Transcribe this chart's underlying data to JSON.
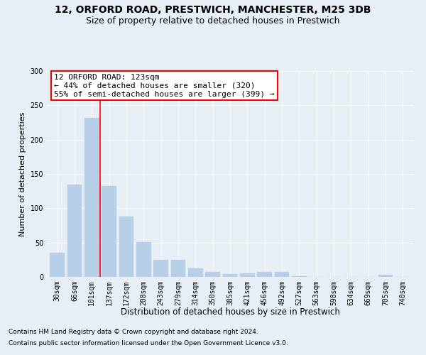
{
  "title1": "12, ORFORD ROAD, PRESTWICH, MANCHESTER, M25 3DB",
  "title2": "Size of property relative to detached houses in Prestwich",
  "xlabel": "Distribution of detached houses by size in Prestwich",
  "ylabel": "Number of detached properties",
  "bar_labels": [
    "30sqm",
    "66sqm",
    "101sqm",
    "137sqm",
    "172sqm",
    "208sqm",
    "243sqm",
    "279sqm",
    "314sqm",
    "350sqm",
    "385sqm",
    "421sqm",
    "456sqm",
    "492sqm",
    "527sqm",
    "563sqm",
    "598sqm",
    "634sqm",
    "669sqm",
    "705sqm",
    "740sqm"
  ],
  "bar_heights": [
    35,
    135,
    232,
    132,
    88,
    51,
    25,
    25,
    12,
    7,
    4,
    5,
    7,
    7,
    1,
    0,
    0,
    0,
    0,
    3,
    0
  ],
  "bar_color": "#b8cfe8",
  "bar_edgecolor": "#b8cfe8",
  "background_color": "#e8eef5",
  "vline_x": 2.5,
  "vline_color": "red",
  "annotation_title": "12 ORFORD ROAD: 123sqm",
  "annotation_line1": "← 44% of detached houses are smaller (320)",
  "annotation_line2": "55% of semi-detached houses are larger (399) →",
  "annotation_box_color": "white",
  "annotation_box_edgecolor": "red",
  "ylim": [
    0,
    300
  ],
  "yticks": [
    0,
    50,
    100,
    150,
    200,
    250,
    300
  ],
  "footnote1": "Contains HM Land Registry data © Crown copyright and database right 2024.",
  "footnote2": "Contains public sector information licensed under the Open Government Licence v3.0.",
  "title1_fontsize": 10,
  "title2_fontsize": 9,
  "xlabel_fontsize": 8.5,
  "ylabel_fontsize": 8,
  "tick_fontsize": 7,
  "annotation_fontsize": 8,
  "footnote_fontsize": 6.5
}
